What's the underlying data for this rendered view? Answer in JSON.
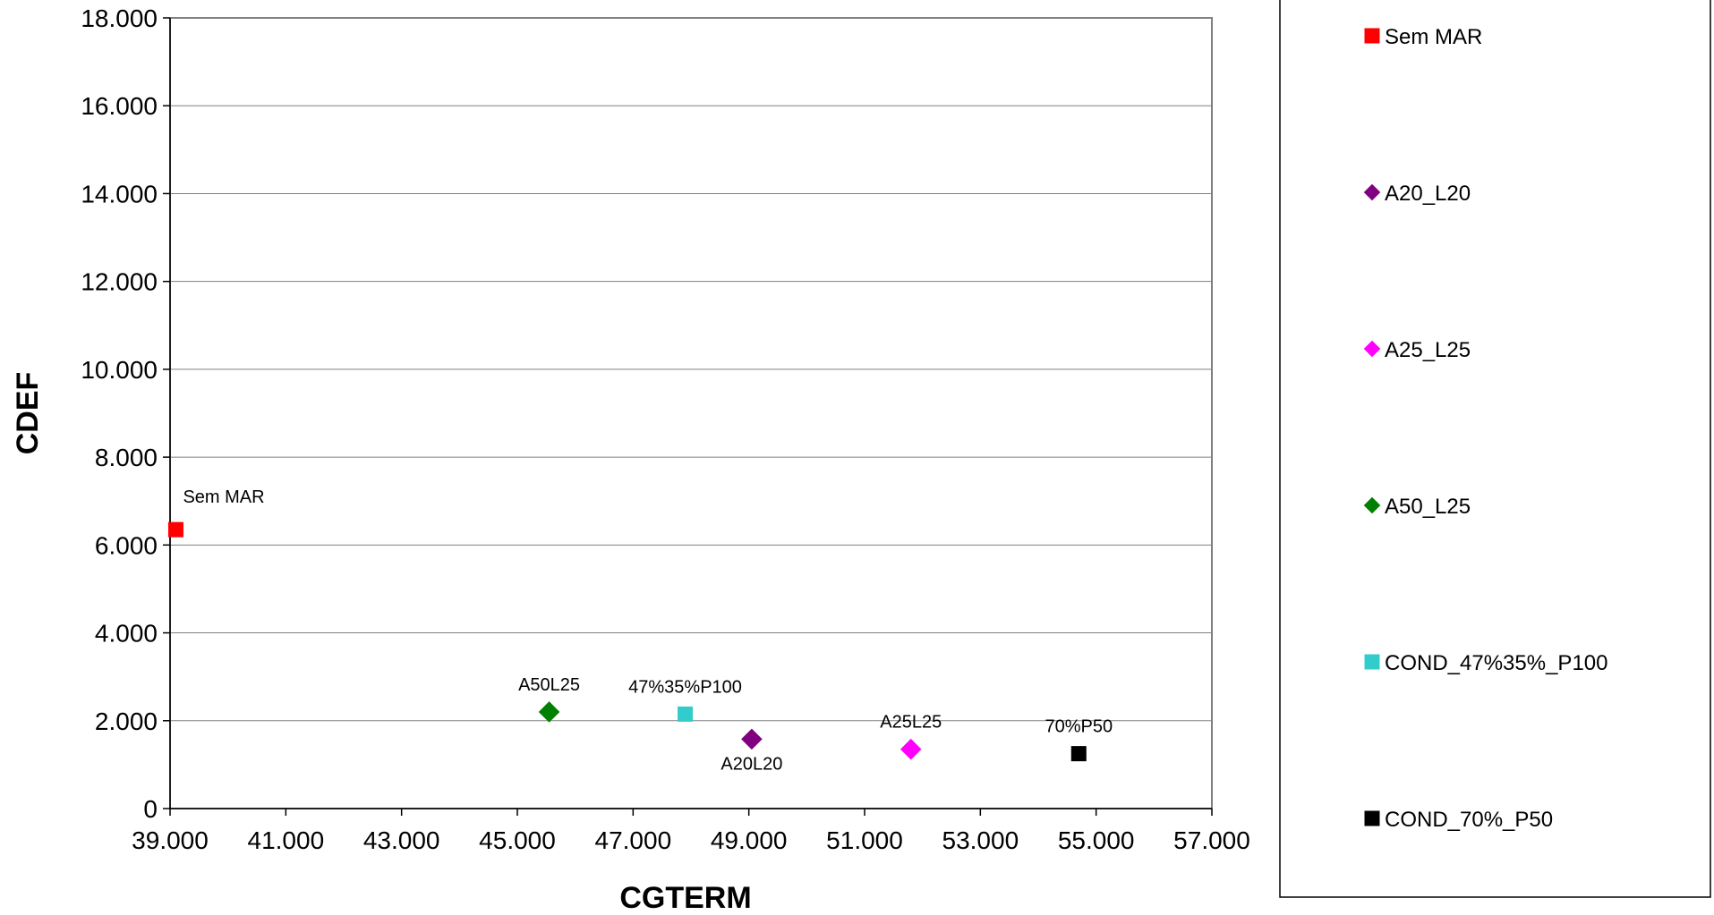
{
  "chart_data": {
    "type": "scatter",
    "xlabel": "CGTERM",
    "ylabel": "CDEF",
    "xlim": [
      39000,
      57000
    ],
    "ylim": [
      0,
      18000
    ],
    "x_ticks": [
      "39.000",
      "41.000",
      "43.000",
      "45.000",
      "47.000",
      "49.000",
      "51.000",
      "53.000",
      "55.000",
      "57.000"
    ],
    "y_ticks": [
      "0",
      "2.000",
      "4.000",
      "6.000",
      "8.000",
      "10.000",
      "12.000",
      "14.000",
      "16.000",
      "18.000"
    ],
    "grid": "horizontal",
    "legend_position": "right",
    "series": [
      {
        "name": "Sem MAR",
        "marker": "square",
        "color": "#ff0000",
        "label": "Sem MAR",
        "label_position": "above-right",
        "points": [
          [
            39100,
            6350
          ]
        ]
      },
      {
        "name": "A20_L20",
        "marker": "diamond",
        "color": "#800080",
        "label": "A20L20",
        "label_position": "below",
        "points": [
          [
            49050,
            1580
          ]
        ]
      },
      {
        "name": "A25_L25",
        "marker": "diamond",
        "color": "#ff00ff",
        "label": "A25L25",
        "label_position": "above",
        "points": [
          [
            51800,
            1350
          ]
        ]
      },
      {
        "name": "A50_L25",
        "marker": "diamond",
        "color": "#008000",
        "label": "A50L25",
        "label_position": "above",
        "points": [
          [
            45550,
            2200
          ]
        ]
      },
      {
        "name": "COND_47%35%_P100",
        "marker": "square",
        "color": "#33cccc",
        "label": "47%35%P100",
        "label_position": "above",
        "points": [
          [
            47900,
            2150
          ]
        ]
      },
      {
        "name": "COND_70%_P50",
        "marker": "square",
        "color": "#000000",
        "label": "70%P50",
        "label_position": "above",
        "points": [
          [
            54700,
            1250
          ]
        ]
      }
    ]
  }
}
